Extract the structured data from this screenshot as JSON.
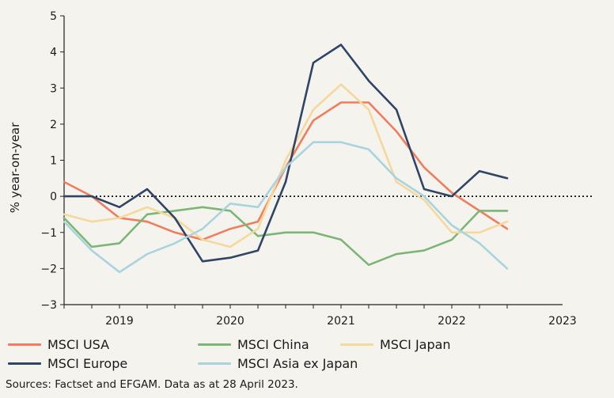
{
  "chart_data": {
    "type": "line",
    "title": "",
    "xlabel": "",
    "ylabel": "% year-on-year",
    "ylim": [
      -3,
      5
    ],
    "yticks": [
      -3,
      -2,
      -1,
      0,
      1,
      2,
      3,
      4,
      5
    ],
    "xlim": [
      2018.5,
      2023
    ],
    "xtick_labels": [
      "2019",
      "2020",
      "2021",
      "2022",
      "2023"
    ],
    "xtick_label_positions": [
      2019,
      2020,
      2021,
      2022,
      2023
    ],
    "x": [
      2018.5,
      2018.75,
      2019,
      2019.25,
      2019.5,
      2019.75,
      2020,
      2020.25,
      2020.5,
      2020.75,
      2021,
      2021.25,
      2021.5,
      2021.75,
      2022,
      2022.25,
      2022.5
    ],
    "zero_line": "dotted",
    "series": [
      {
        "name": "MSCI USA",
        "color": "#ef7d5e",
        "values": [
          0.4,
          0.0,
          -0.6,
          -0.7,
          -1.0,
          -1.2,
          -0.9,
          -0.7,
          0.8,
          2.1,
          2.6,
          2.6,
          1.8,
          0.8,
          0.1,
          -0.4,
          -0.9
        ]
      },
      {
        "name": "MSCI China",
        "color": "#7cb677",
        "values": [
          -0.6,
          -1.4,
          -1.3,
          -0.5,
          -0.4,
          -0.3,
          -0.4,
          -1.1,
          -1.0,
          -1.0,
          -1.2,
          -1.9,
          -1.6,
          -1.5,
          -1.2,
          -0.4,
          -0.4
        ]
      },
      {
        "name": "MSCI Japan",
        "color": "#f5d89b",
        "values": [
          -0.5,
          -0.7,
          -0.6,
          -0.3,
          -0.6,
          -1.2,
          -1.4,
          -0.9,
          1.0,
          2.4,
          3.1,
          2.4,
          0.4,
          -0.1,
          -1.0,
          -1.0,
          -0.7
        ]
      },
      {
        "name": "MSCI Europe",
        "color": "#2f4566",
        "values": [
          0.0,
          0.0,
          -0.3,
          0.2,
          -0.6,
          -1.8,
          -1.7,
          -1.5,
          0.4,
          3.7,
          4.2,
          3.2,
          2.4,
          0.2,
          0.0,
          0.7,
          0.5
        ]
      },
      {
        "name": "MSCI Asia ex Japan",
        "color": "#a9d4de",
        "values": [
          -0.7,
          -1.5,
          -2.1,
          -1.6,
          -1.3,
          -0.9,
          -0.2,
          -0.3,
          0.8,
          1.5,
          1.5,
          1.3,
          0.5,
          0.0,
          -0.8,
          -1.3,
          -2.0
        ]
      }
    ],
    "legend": {
      "placement": "bottom",
      "entries": [
        "MSCI USA",
        "MSCI China",
        "MSCI Japan",
        "MSCI Europe",
        "MSCI Asia ex Japan"
      ]
    }
  },
  "source_note": "Sources: Factset and EFGAM. Data as at 28 April 2023."
}
